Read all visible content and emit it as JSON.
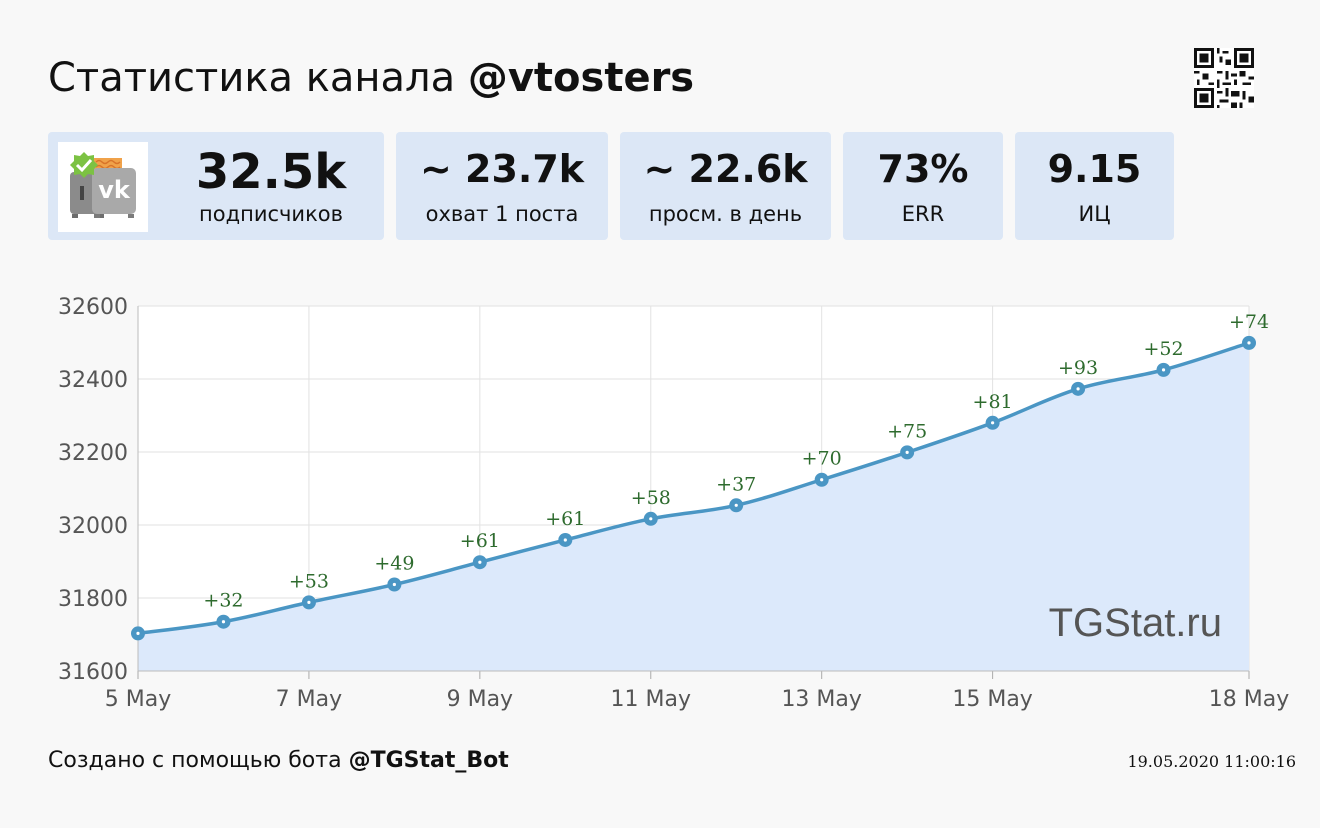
{
  "header": {
    "title_prefix": "Статистика канала ",
    "channel": "@vtosters"
  },
  "stats": {
    "subscribers": {
      "value": "32.5k",
      "label": "подписчиков"
    },
    "reach": {
      "value": "~ 23.7k",
      "label": "охват 1 поста"
    },
    "views": {
      "value": "~ 22.6k",
      "label": "просм. в день"
    },
    "err": {
      "value": "73%",
      "label": "ERR"
    },
    "ci": {
      "value": "9.15",
      "label": "ИЦ"
    }
  },
  "icons": {
    "avatar": "channel-avatar-vk-logo",
    "qr": "qr-code-icon"
  },
  "colors": {
    "line": "#4a96c4",
    "fill": "#dce9fb",
    "annotation": "#2e6b2e",
    "card": "#dce7f6"
  },
  "chart_data": {
    "type": "area",
    "x": [
      "5 May",
      "6 May",
      "7 May",
      "8 May",
      "9 May",
      "10 May",
      "11 May",
      "12 May",
      "13 May",
      "14 May",
      "15 May",
      "16 May",
      "17 May",
      "18 May"
    ],
    "xtick_labels": [
      "5 May",
      "7 May",
      "9 May",
      "11 May",
      "13 May",
      "15 May",
      "18 May"
    ],
    "values": [
      31703,
      31735,
      31788,
      31837,
      31898,
      31959,
      32017,
      32054,
      32124,
      32199,
      32280,
      32373,
      32425,
      32499
    ],
    "annotations": [
      "",
      "+32",
      "+53",
      "+49",
      "+61",
      "+61",
      "+58",
      "+37",
      "+70",
      "+75",
      "+81",
      "+93",
      "+52",
      "+74"
    ],
    "yticks": [
      31600,
      31800,
      32000,
      32200,
      32400,
      32600
    ],
    "ylim": [
      31600,
      32600
    ],
    "grid": true,
    "watermark": "TGStat.ru"
  },
  "footer": {
    "text": "Создано с помощью бота ",
    "bot": "@TGStat_Bot",
    "timestamp": "19.05.2020 11:00:16"
  }
}
